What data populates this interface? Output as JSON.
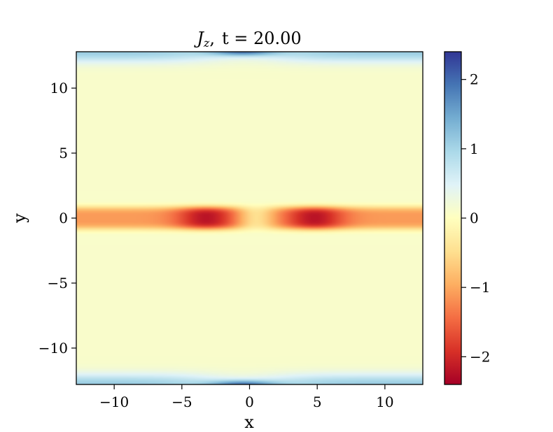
{
  "chart_data": {
    "type": "heatmap",
    "title_symbol": "J",
    "title_subscript": "z",
    "title_sep": ",",
    "title_rest": "t = 20.00",
    "xlabel": "x",
    "ylabel": "y",
    "xlim": [
      -12.8,
      12.8
    ],
    "ylim": [
      -12.8,
      12.8
    ],
    "xticks": [
      -10,
      -5,
      0,
      5,
      10
    ],
    "xtick_labels": [
      "−10",
      "−5",
      "0",
      "5",
      "10"
    ],
    "yticks": [
      -10,
      -5,
      0,
      5,
      10
    ],
    "ytick_labels": [
      "−10",
      "−5",
      "0",
      "5",
      "10"
    ],
    "colorbar": {
      "colormap": "RdYlBu",
      "range": [
        -2.4,
        2.4
      ],
      "ticks": [
        -2,
        -1,
        0,
        1,
        2
      ],
      "tick_labels": [
        "−2",
        "−1",
        "0",
        "1",
        "2"
      ]
    },
    "features": {
      "background_value": 0.1,
      "current_sheet": {
        "y": 0,
        "half_width": 0.9,
        "value": -1.2,
        "peaks": [
          {
            "x": -3.2,
            "value": -2.3
          },
          {
            "x": 4.8,
            "value": -2.3
          }
        ],
        "center_gap_x": 0.5
      },
      "boundary_layers": [
        {
          "y": 12.8,
          "thickness": 0.8,
          "value": 1.0,
          "peak_x": -0.5,
          "peak_value": 2.4
        },
        {
          "y": -12.8,
          "thickness": 0.8,
          "value": 1.0,
          "peak_x": -0.5,
          "peak_value": 2.4
        }
      ]
    },
    "grid": false,
    "colorbar_position": "right"
  }
}
